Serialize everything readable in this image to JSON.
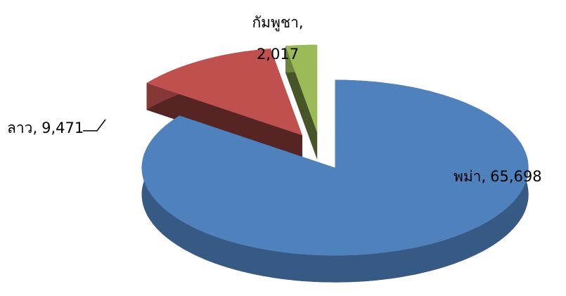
{
  "chart_data": {
    "type": "pie",
    "categories": [
      "พม่า,",
      "ลาว,",
      "กัมพูชา,"
    ],
    "values": [
      65698,
      9471,
      2017
    ],
    "value_labels": [
      "65,698",
      "9,471",
      "2,017"
    ],
    "colors": [
      "#4f81bd",
      "#c0504d",
      "#9bbb59"
    ],
    "three_d": true,
    "exploded": true
  }
}
